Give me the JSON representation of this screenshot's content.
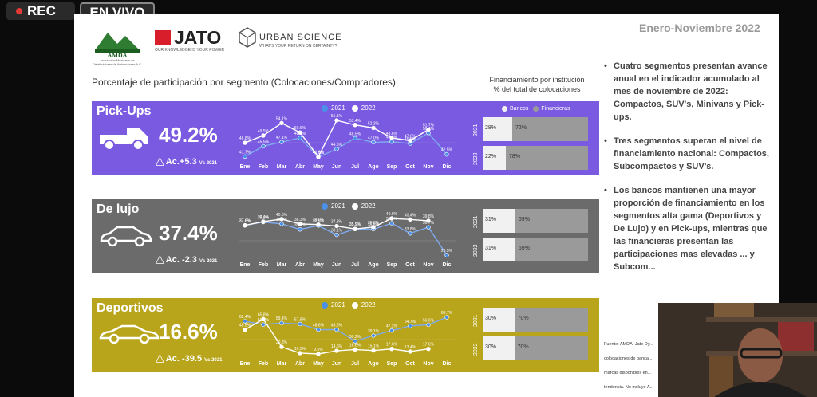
{
  "stream": {
    "rec_label": "REC",
    "live_label": "EN VIVO"
  },
  "header": {
    "amda_logo": "AMDA",
    "amda_sub": "Asociación Mexicana de Distribuidores de Automotores A.C.",
    "jato_logo": "JATO",
    "jato_tag": "OUR KNOWLEDGE IS YOUR POWER",
    "us_logo": "URBAN SCIENCE",
    "us_tag": "WHAT'S YOUR RETURN ON CERTAINTY?",
    "period": "Enero-Noviembre 2022"
  },
  "subtitle": "Porcentaje de participación por segmento (Colocaciones/Compradores)",
  "fin_title": "Financiamiento por institución\n% del total de colocaciones",
  "colors": {
    "pickups": "#7a5ae0",
    "lujo": "#6b6b6b",
    "deportivos": "#b9a51c",
    "s2021": "#4a8fe8",
    "s2022": "#ffffff",
    "bancos": "#f1f1f1",
    "financieras": "#9a9a9a"
  },
  "months": [
    "Ene",
    "Feb",
    "Mar",
    "Abr",
    "May",
    "Jun",
    "Jul",
    "Ago",
    "Sep",
    "Oct",
    "Nov",
    "Dic"
  ],
  "legend": {
    "y2021": "2021",
    "y2022": "2022",
    "bancos": "Bancos",
    "financieras": "Financieras"
  },
  "segments": [
    {
      "name": "Pick-Ups",
      "pct": "49.2%",
      "ac": "Ac.+5.3",
      "vs": "Vs 2021",
      "icon": "pickup-icon",
      "fin": [
        {
          "year": "2021",
          "bancos": "28%",
          "financieras": "72%",
          "bank_share": 0.28
        },
        {
          "year": "2022",
          "bancos": "22%",
          "financieras": "78%",
          "bank_share": 0.22
        }
      ],
      "chart_data": {
        "type": "line",
        "categories": [
          "Ene",
          "Feb",
          "Mar",
          "Abr",
          "May",
          "Jun",
          "Jul",
          "Ago",
          "Sep",
          "Oct",
          "Nov",
          "Dic"
        ],
        "series": [
          {
            "name": "2021",
            "values": [
              41.7,
              45.5,
              47.1,
              48.6,
              41.5,
              44.5,
              48.5,
              47.0,
              47.2,
              46.5,
              50.4,
              42.5
            ]
          },
          {
            "name": "2022",
            "values": [
              46.8,
              49.5,
              54.1,
              50.6,
              41.6,
              55.1,
              53.4,
              52.3,
              48.6,
              47.6,
              51.7,
              null
            ]
          }
        ]
      }
    },
    {
      "name": "De lujo",
      "pct": "37.4%",
      "ac": "Ac. -2.3",
      "vs": "Vs 2021",
      "icon": "sedan-icon",
      "fin": [
        {
          "year": "2021",
          "bancos": "31%",
          "financieras": "69%",
          "bank_share": 0.31
        },
        {
          "year": "2022",
          "bancos": "31%",
          "financieras": "69%",
          "bank_share": 0.31
        }
      ],
      "chart_data": {
        "type": "line",
        "categories": [
          "Ene",
          "Feb",
          "Mar",
          "Abr",
          "May",
          "Jun",
          "Jul",
          "Ago",
          "Sep",
          "Oct",
          "Nov",
          "Dic"
        ],
        "series": [
          {
            "name": "2021",
            "values": [
              37.6,
              39.2,
              38.3,
              35.7,
              37.5,
              33.1,
              35.9,
              35.8,
              38.6,
              33.8,
              36.7,
              23.5
            ]
          },
          {
            "name": "2022",
            "values": [
              37.6,
              39.4,
              40.6,
              38.3,
              38.0,
              37.3,
              35.9,
              36.8,
              40.9,
              40.4,
              39.8,
              null
            ]
          }
        ]
      }
    },
    {
      "name": "Deportivos",
      "pct": "16.6%",
      "ac": "Ac. -39.5",
      "vs": "Vs 2021",
      "icon": "sportscar-icon",
      "fin": [
        {
          "year": "2021",
          "bancos": "30%",
          "financieras": "70%",
          "bank_share": 0.3
        },
        {
          "year": "2022",
          "bancos": "30%",
          "financieras": "70%",
          "bank_share": 0.3
        }
      ],
      "chart_data": {
        "type": "line",
        "categories": [
          "Ene",
          "Feb",
          "Mar",
          "Abr",
          "May",
          "Jun",
          "Jul",
          "Ago",
          "Sep",
          "Oct",
          "Nov",
          "Dic"
        ],
        "series": [
          {
            "name": "2021",
            "values": [
              62.4,
              56.8,
              59.4,
              57.8,
              48.6,
              48.8,
              30.2,
              39.1,
              47.2,
              54.7,
              56.6,
              68.7
            ]
          },
          {
            "name": "2022",
            "values": [
              48.5,
              65.8,
              20.8,
              10.9,
              9.5,
              14.6,
              16.6,
              15.1,
              17.6,
              13.4,
              17.6,
              null
            ]
          }
        ]
      }
    }
  ],
  "bullets": [
    "Cuatro segmentos presentan avance anual en el indicador acumulado al mes de noviembre de 2022: Compactos, SUV's, Minivans y Pick-ups.",
    "Tres segmentos superan el nivel de financiamiento nacional: Compactos, Subcompactos y SUV's.",
    "Los bancos mantienen una mayor proporción de financiamiento en los segmentos alta gama (Deportivos y De Lujo) y en Pick-ups, mientras que las financieras presentan las participaciones mas elevadas ... y Subcom..."
  ],
  "footnotes": [
    "Fuente: AMDA, Jato Dy...",
    "colocaciones de banca...",
    "marcas disponibles en...",
    "tendencia. No incluye A..."
  ]
}
